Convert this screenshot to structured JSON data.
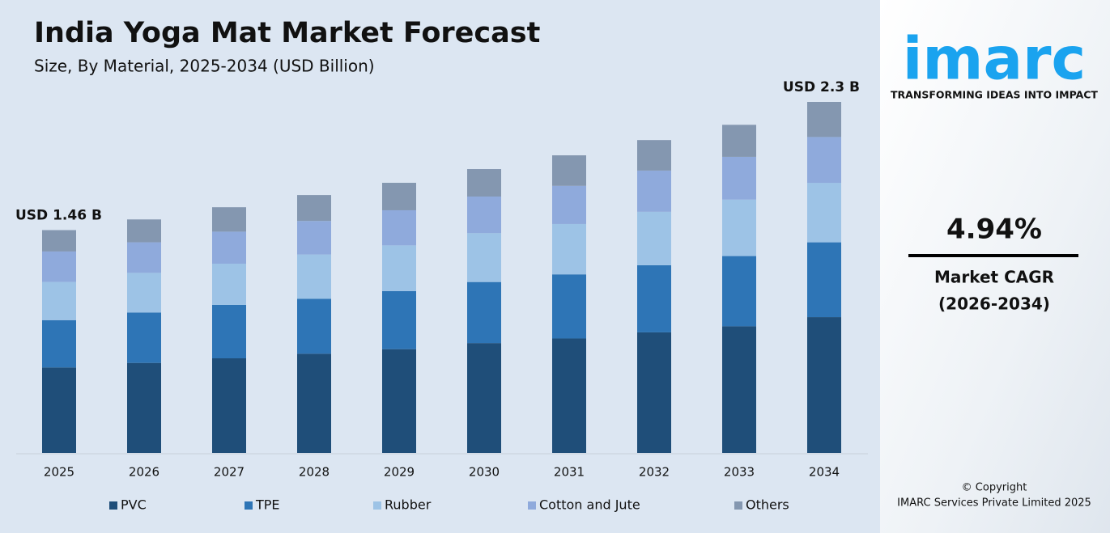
{
  "chart_data": {
    "type": "stacked-bar",
    "title": "India Yoga Mat Market Forecast",
    "subtitle": "Size, By Material, 2025-2034 (USD Billion)",
    "categories": [
      "2025",
      "2026",
      "2027",
      "2028",
      "2029",
      "2030",
      "2031",
      "2032",
      "2033",
      "2034"
    ],
    "series": [
      {
        "name": "PVC",
        "color": "#1f4e79",
        "values": [
          0.56,
          0.59,
          0.62,
          0.65,
          0.68,
          0.72,
          0.75,
          0.79,
          0.83,
          0.89
        ]
      },
      {
        "name": "TPE",
        "color": "#2e75b6",
        "values": [
          0.31,
          0.33,
          0.35,
          0.36,
          0.38,
          0.4,
          0.42,
          0.44,
          0.46,
          0.49
        ]
      },
      {
        "name": "Rubber",
        "color": "#9dc3e6",
        "values": [
          0.25,
          0.26,
          0.27,
          0.29,
          0.3,
          0.32,
          0.33,
          0.35,
          0.37,
          0.39
        ]
      },
      {
        "name": "Cotton and Jute",
        "color": "#8faadc",
        "values": [
          0.2,
          0.2,
          0.21,
          0.22,
          0.23,
          0.24,
          0.25,
          0.27,
          0.28,
          0.3
        ]
      },
      {
        "name": "Others",
        "color": "#8497b0",
        "values": [
          0.14,
          0.15,
          0.16,
          0.17,
          0.18,
          0.18,
          0.2,
          0.2,
          0.21,
          0.23
        ]
      }
    ],
    "annotations": [
      "USD 1.46 B",
      "USD 2.3 B"
    ]
  },
  "panel": {
    "logo": "imarc",
    "tagline": "TRANSFORMING IDEAS INTO IMPACT",
    "cagr": "4.94%",
    "cagr_label": "Market CAGR",
    "cagr_period": "(2026-2034)",
    "copyright": "© Copyright",
    "company": "IMARC Services Private Limited 2025"
  }
}
